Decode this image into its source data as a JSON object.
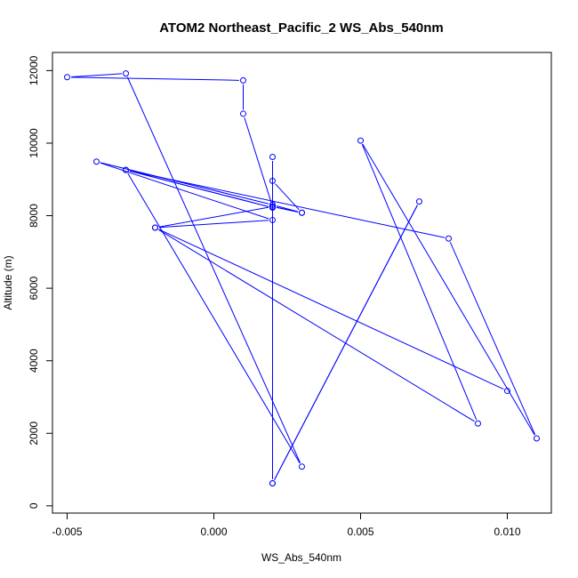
{
  "chart_data": {
    "type": "line",
    "title": "ATOM2 Northeast_Pacific_2 WS_Abs_540nm",
    "xlabel": "WS_Abs_540nm",
    "ylabel": "Altitude (m)",
    "xlim": [
      -0.0055,
      0.0115
    ],
    "ylim": [
      -200,
      12500
    ],
    "xticks": [
      -0.005,
      0.0,
      0.005,
      0.01
    ],
    "xtick_labels": [
      "-0.005",
      "0.000",
      "0.005",
      "0.010"
    ],
    "yticks": [
      0,
      2000,
      4000,
      6000,
      8000,
      10000,
      12000
    ],
    "yticks_labels": [
      "0",
      "2000",
      "4000",
      "6000",
      "8000",
      "10000",
      "12000"
    ],
    "grid": false,
    "series_color": "#0000ff",
    "series": [
      {
        "x": [
          0.002,
          0.007,
          0.002,
          0.002,
          0.002,
          0.002,
          0.003,
          0.002,
          -0.004,
          0.002,
          -0.002,
          0.009,
          0.005,
          0.011,
          0.008,
          -0.003,
          0.002,
          -0.003,
          0.003,
          -0.003,
          -0.005,
          0.001,
          0.001,
          0.002,
          0.003,
          0.002,
          -0.002,
          0.01
        ],
        "y": [
          620,
          8390,
          620,
          9620,
          8300,
          8960,
          8080,
          8300,
          9490,
          7880,
          7670,
          2270,
          10070,
          1860,
          7370,
          9260,
          8220,
          9260,
          1080,
          11920,
          11820,
          11730,
          10810,
          8250,
          8080,
          8250,
          7670,
          3170
        ]
      }
    ]
  }
}
